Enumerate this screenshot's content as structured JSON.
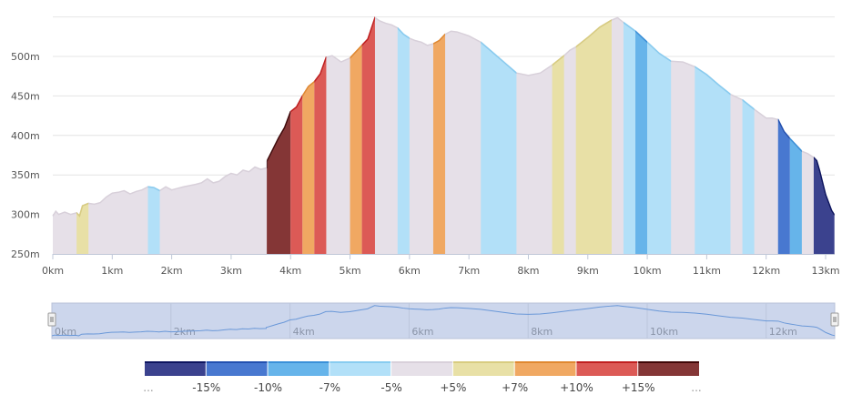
{
  "chart_data": {
    "type": "area",
    "title": "",
    "xlabel": "",
    "ylabel": "",
    "x_unit": "km",
    "y_unit": "m",
    "xlim": [
      0,
      13.15
    ],
    "ylim": [
      250,
      550
    ],
    "x_ticks": [
      "0km",
      "1km",
      "2km",
      "3km",
      "4km",
      "5km",
      "6km",
      "7km",
      "8km",
      "9km",
      "10km",
      "11km",
      "12km",
      "13km"
    ],
    "y_ticks": [
      "250m",
      "300m",
      "350m",
      "400m",
      "450m",
      "500m"
    ],
    "y_tick_values": [
      250,
      300,
      350,
      400,
      450,
      500,
      550
    ],
    "grid": true,
    "profile": [
      [
        0,
        298
      ],
      [
        0.05,
        304
      ],
      [
        0.1,
        300
      ],
      [
        0.2,
        303
      ],
      [
        0.3,
        300
      ],
      [
        0.4,
        302
      ],
      [
        0.45,
        298
      ],
      [
        0.5,
        311
      ],
      [
        0.6,
        314
      ],
      [
        0.7,
        313
      ],
      [
        0.8,
        315
      ],
      [
        0.9,
        322
      ],
      [
        1.0,
        327
      ],
      [
        1.1,
        328
      ],
      [
        1.2,
        330
      ],
      [
        1.3,
        326
      ],
      [
        1.4,
        329
      ],
      [
        1.5,
        331
      ],
      [
        1.6,
        335
      ],
      [
        1.7,
        334
      ],
      [
        1.8,
        330
      ],
      [
        1.9,
        335
      ],
      [
        2.0,
        331
      ],
      [
        2.1,
        333
      ],
      [
        2.2,
        335
      ],
      [
        2.4,
        338
      ],
      [
        2.5,
        340
      ],
      [
        2.6,
        345
      ],
      [
        2.7,
        340
      ],
      [
        2.8,
        342
      ],
      [
        2.9,
        348
      ],
      [
        3.0,
        352
      ],
      [
        3.1,
        350
      ],
      [
        3.2,
        356
      ],
      [
        3.3,
        354
      ],
      [
        3.4,
        360
      ],
      [
        3.5,
        357
      ],
      [
        3.6,
        359
      ],
      [
        3.6,
        367
      ],
      [
        3.7,
        382
      ],
      [
        3.8,
        397
      ],
      [
        3.9,
        410
      ],
      [
        4.0,
        430
      ],
      [
        4.1,
        436
      ],
      [
        4.2,
        450
      ],
      [
        4.3,
        462
      ],
      [
        4.4,
        468
      ],
      [
        4.5,
        478
      ],
      [
        4.6,
        499
      ],
      [
        4.7,
        501
      ],
      [
        4.85,
        493
      ],
      [
        5.0,
        498
      ],
      [
        5.1,
        506
      ],
      [
        5.2,
        514
      ],
      [
        5.3,
        522
      ],
      [
        5.42,
        549
      ],
      [
        5.5,
        545
      ],
      [
        5.6,
        542
      ],
      [
        5.7,
        540
      ],
      [
        5.8,
        536
      ],
      [
        5.9,
        528
      ],
      [
        6.0,
        523
      ],
      [
        6.1,
        520
      ],
      [
        6.2,
        518
      ],
      [
        6.3,
        514
      ],
      [
        6.4,
        516
      ],
      [
        6.5,
        520
      ],
      [
        6.6,
        528
      ],
      [
        6.7,
        532
      ],
      [
        6.8,
        531
      ],
      [
        7.0,
        526
      ],
      [
        7.2,
        518
      ],
      [
        7.4,
        505
      ],
      [
        7.6,
        492
      ],
      [
        7.8,
        479
      ],
      [
        8.0,
        476
      ],
      [
        8.2,
        479
      ],
      [
        8.4,
        489
      ],
      [
        8.6,
        501
      ],
      [
        8.7,
        508
      ],
      [
        8.8,
        512
      ],
      [
        9.0,
        524
      ],
      [
        9.2,
        537
      ],
      [
        9.4,
        546
      ],
      [
        9.5,
        549
      ],
      [
        9.6,
        543
      ],
      [
        9.8,
        532
      ],
      [
        10.0,
        518
      ],
      [
        10.2,
        504
      ],
      [
        10.4,
        494
      ],
      [
        10.6,
        493
      ],
      [
        10.8,
        487
      ],
      [
        11.0,
        477
      ],
      [
        11.2,
        464
      ],
      [
        11.4,
        452
      ],
      [
        11.6,
        445
      ],
      [
        11.8,
        433
      ],
      [
        12.0,
        422
      ],
      [
        12.1,
        422
      ],
      [
        12.2,
        420
      ],
      [
        12.3,
        405
      ],
      [
        12.4,
        396
      ],
      [
        12.5,
        388
      ],
      [
        12.6,
        380
      ],
      [
        12.7,
        377
      ],
      [
        12.8,
        372
      ],
      [
        12.85,
        368
      ],
      [
        12.9,
        355
      ],
      [
        13.0,
        325
      ],
      [
        13.1,
        305
      ],
      [
        13.15,
        299
      ]
    ],
    "segments": [
      {
        "from": 0.4,
        "to": 0.6,
        "cls": 5
      },
      {
        "from": 1.6,
        "to": 1.8,
        "cls": 3
      },
      {
        "from": 3.6,
        "to": 4.0,
        "cls": 8
      },
      {
        "from": 4.0,
        "to": 4.2,
        "cls": 7
      },
      {
        "from": 4.2,
        "to": 4.4,
        "cls": 6
      },
      {
        "from": 4.4,
        "to": 4.6,
        "cls": 7
      },
      {
        "from": 5.0,
        "to": 5.2,
        "cls": 6
      },
      {
        "from": 5.2,
        "to": 5.42,
        "cls": 7
      },
      {
        "from": 5.8,
        "to": 6.0,
        "cls": 3
      },
      {
        "from": 6.4,
        "to": 6.6,
        "cls": 6
      },
      {
        "from": 7.2,
        "to": 7.8,
        "cls": 3
      },
      {
        "from": 8.4,
        "to": 8.6,
        "cls": 5
      },
      {
        "from": 8.8,
        "to": 9.4,
        "cls": 5
      },
      {
        "from": 9.6,
        "to": 9.8,
        "cls": 3
      },
      {
        "from": 9.8,
        "to": 10.0,
        "cls": 2
      },
      {
        "from": 10.0,
        "to": 10.4,
        "cls": 3
      },
      {
        "from": 10.8,
        "to": 11.4,
        "cls": 3
      },
      {
        "from": 11.6,
        "to": 11.8,
        "cls": 3
      },
      {
        "from": 12.2,
        "to": 12.4,
        "cls": 1
      },
      {
        "from": 12.4,
        "to": 12.6,
        "cls": 2
      },
      {
        "from": 12.8,
        "to": 13.15,
        "cls": 0
      }
    ],
    "gradient_classes": [
      {
        "fill": "#3b428e",
        "stroke": "#0d1560"
      },
      {
        "fill": "#4878d0",
        "stroke": "#2250b0"
      },
      {
        "fill": "#66b4ea",
        "stroke": "#3a90d8"
      },
      {
        "fill": "#b2e0f8",
        "stroke": "#88ccf0"
      },
      {
        "fill": "#e6e0e8",
        "stroke": "#d8d0da"
      },
      {
        "fill": "#e8e0a6",
        "stroke": "#d8cc80"
      },
      {
        "fill": "#f0a862",
        "stroke": "#e08830"
      },
      {
        "fill": "#dc5a56",
        "stroke": "#c02020"
      },
      {
        "fill": "#843636",
        "stroke": "#400808"
      }
    ],
    "legend": {
      "labels": [
        "...",
        "-15%",
        "-10%",
        "-7%",
        "-5%",
        "+5%",
        "+7%",
        "+10%",
        "+15%",
        "..."
      ]
    },
    "navigator": {
      "ticks": [
        "0km",
        "2km",
        "4km",
        "6km",
        "8km",
        "10km",
        "12km"
      ]
    }
  }
}
